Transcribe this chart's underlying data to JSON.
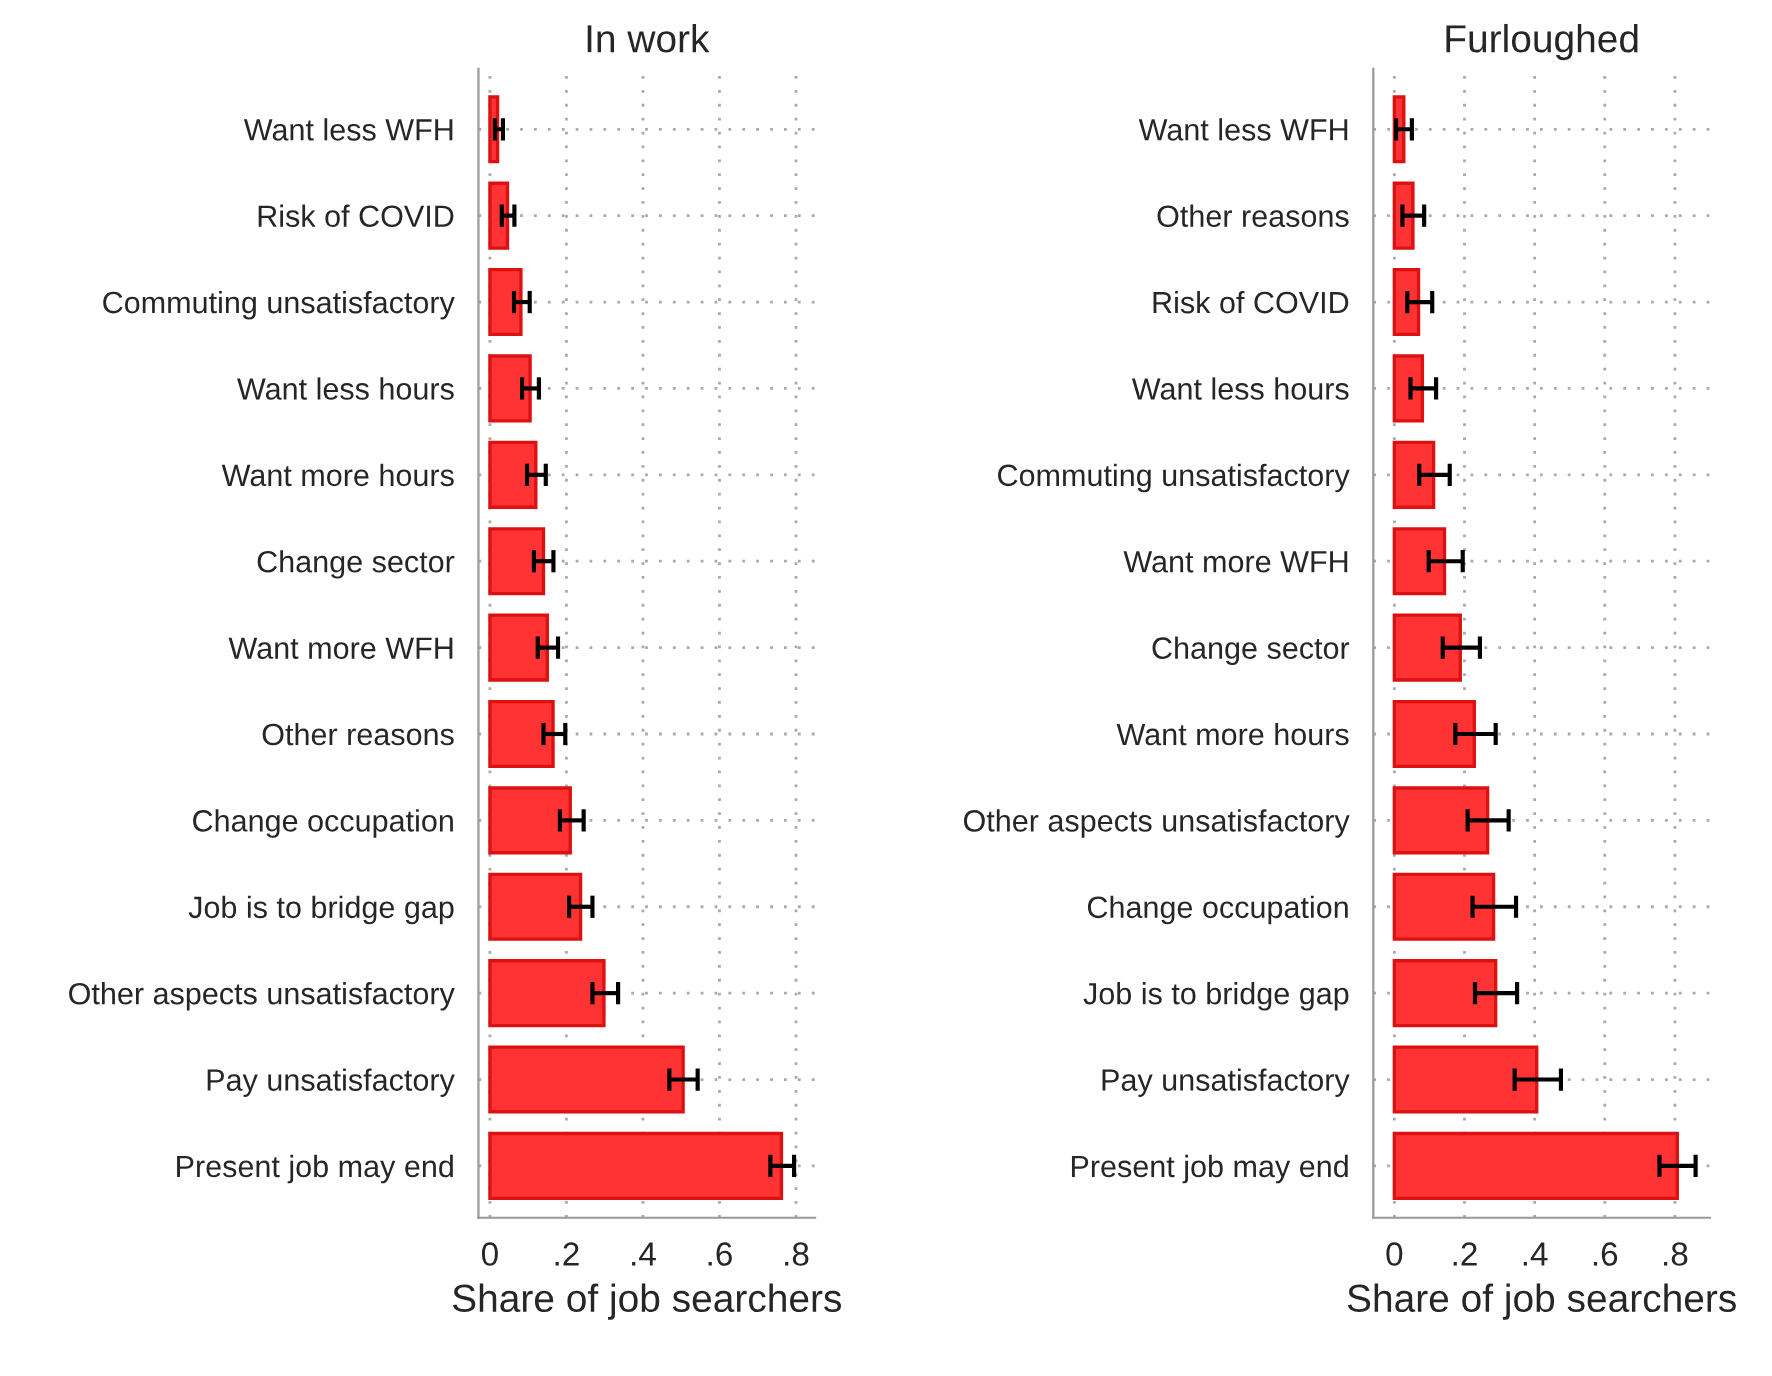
{
  "chart_data": [
    {
      "type": "bar",
      "orientation": "horizontal",
      "title": "In work",
      "xlabel": "Share of job searchers",
      "categories": [
        "Want less WFH",
        "Risk of COVID",
        "Commuting unsatisfactory",
        "Want less hours",
        "Want more hours",
        "Change sector",
        "Want more WFH",
        "Other reasons",
        "Change occupation",
        "Job is to bridge gap",
        "Other aspects unsatisfactory",
        "Pay unsatisfactory",
        "Present job may end"
      ],
      "series": [
        {
          "color": "#ff3333",
          "values": [
            0.02,
            0.046,
            0.081,
            0.105,
            0.12,
            0.14,
            0.15,
            0.165,
            0.21,
            0.237,
            0.298,
            0.505,
            0.762
          ],
          "errors": [
            [
              0.013,
              0.034
            ],
            [
              0.031,
              0.064
            ],
            [
              0.063,
              0.104
            ],
            [
              0.084,
              0.128
            ],
            [
              0.097,
              0.146
            ],
            [
              0.115,
              0.166
            ],
            [
              0.125,
              0.178
            ],
            [
              0.14,
              0.197
            ],
            [
              0.183,
              0.245
            ],
            [
              0.207,
              0.268
            ],
            [
              0.268,
              0.335
            ],
            [
              0.469,
              0.543
            ],
            [
              0.733,
              0.795
            ]
          ]
        }
      ],
      "xlim": [
        -0.03,
        0.85
      ],
      "xticks": [
        {
          "value": 0,
          "label": "0"
        },
        {
          "value": 0.2,
          "label": ".2"
        },
        {
          "value": 0.4,
          "label": ".4"
        },
        {
          "value": 0.6,
          "label": ".6"
        },
        {
          "value": 0.8,
          "label": ".8"
        }
      ],
      "grid": true
    },
    {
      "type": "bar",
      "orientation": "horizontal",
      "title": "Furloughed",
      "xlabel": "Share of job searchers",
      "categories": [
        "Want less WFH",
        "Other reasons",
        "Risk of COVID",
        "Want less hours",
        "Commuting unsatisfactory",
        "Want more WFH",
        "Change sector",
        "Want more hours",
        "Other aspects unsatisfactory",
        "Change occupation",
        "Job is to bridge gap",
        "Pay unsatisfactory",
        "Present job may end"
      ],
      "series": [
        {
          "color": "#ff3333",
          "values": [
            0.027,
            0.053,
            0.069,
            0.08,
            0.112,
            0.143,
            0.188,
            0.228,
            0.266,
            0.283,
            0.289,
            0.406,
            0.807
          ],
          "errors": [
            [
              0.005,
              0.05
            ],
            [
              0.023,
              0.085
            ],
            [
              0.037,
              0.108
            ],
            [
              0.046,
              0.119
            ],
            [
              0.071,
              0.158
            ],
            [
              0.098,
              0.195
            ],
            [
              0.138,
              0.244
            ],
            [
              0.174,
              0.289
            ],
            [
              0.209,
              0.326
            ],
            [
              0.223,
              0.347
            ],
            [
              0.23,
              0.35
            ],
            [
              0.343,
              0.475
            ],
            [
              0.756,
              0.859
            ]
          ]
        }
      ],
      "xlim": [
        -0.06,
        0.9
      ],
      "xticks": [
        {
          "value": 0,
          "label": "0"
        },
        {
          "value": 0.2,
          "label": ".2"
        },
        {
          "value": 0.4,
          "label": ".4"
        },
        {
          "value": 0.6,
          "label": ".6"
        },
        {
          "value": 0.8,
          "label": ".8"
        }
      ],
      "grid": true
    }
  ]
}
